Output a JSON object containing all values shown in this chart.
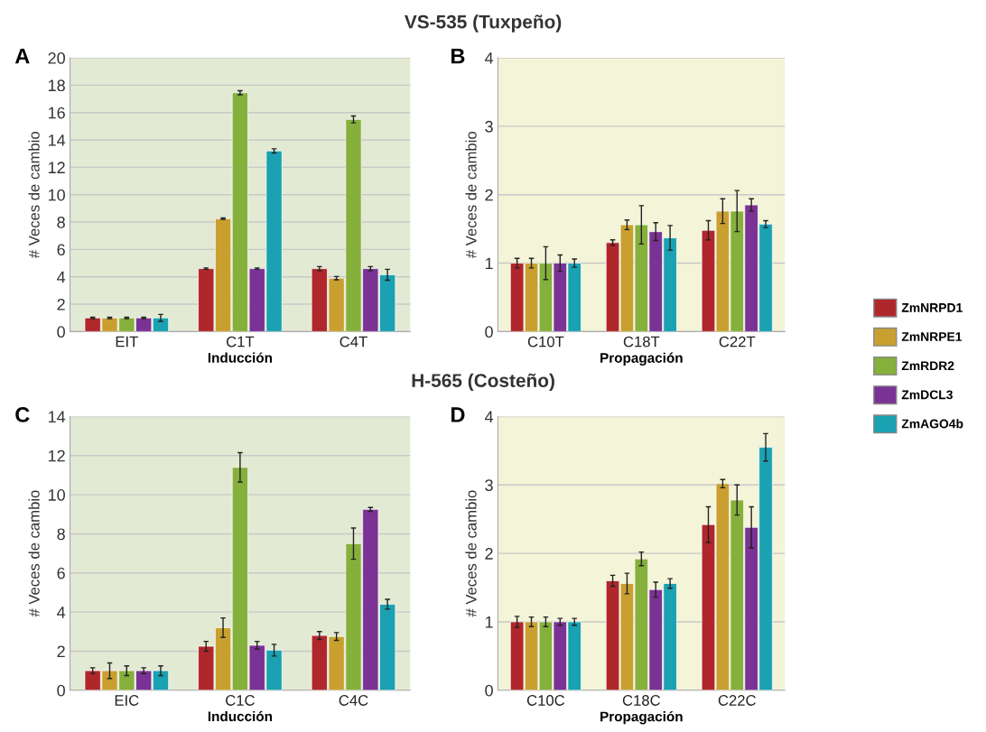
{
  "chart_data": [
    {
      "type": "bar",
      "title": "VS-535 (Tuxpeño)",
      "xlabel": "Inducción",
      "ylabel": "# Veces de cambio",
      "annotations": [
        "A"
      ],
      "categories": [
        "EIT",
        "C1T",
        "C4T"
      ],
      "ylim": [
        0,
        20
      ],
      "yticks": [
        0,
        2,
        4,
        6,
        8,
        10,
        12,
        14,
        16,
        18,
        20
      ],
      "grid": "y",
      "series": [
        {
          "color": "#b0272b",
          "values": [
            1,
            4.6,
            4.6
          ],
          "errors": [
            0.05,
            0.05,
            0.15
          ]
        },
        {
          "color": "#c9a030",
          "values": [
            1,
            8.25,
            3.9
          ],
          "errors": [
            0.05,
            0.05,
            0.12
          ]
        },
        {
          "color": "#86b03c",
          "values": [
            1,
            17.45,
            15.5
          ],
          "errors": [
            0.05,
            0.15,
            0.25
          ]
        },
        {
          "color": "#7a3294",
          "values": [
            1,
            4.6,
            4.6
          ],
          "errors": [
            0.05,
            0.05,
            0.15
          ]
        },
        {
          "color": "#1aa1b2",
          "values": [
            1,
            13.2,
            4.15
          ],
          "errors": [
            0.25,
            0.15,
            0.4
          ]
        }
      ]
    },
    {
      "type": "bar",
      "xlabel": "Propagación",
      "ylabel": "# Veces de cambio",
      "annotations": [
        "B"
      ],
      "categories": [
        "C10T",
        "C18T",
        "C22T"
      ],
      "ylim": [
        0,
        4
      ],
      "yticks": [
        0,
        1,
        2,
        3,
        4
      ],
      "grid": "y",
      "legend": "right",
      "series": [
        {
          "name": "ZmNRPD1",
          "color": "#b0272b",
          "values": [
            1,
            1.3,
            1.48
          ],
          "errors": [
            0.07,
            0.04,
            0.14
          ]
        },
        {
          "name": "ZmNRPE1",
          "color": "#c9a030",
          "values": [
            1,
            1.56,
            1.76
          ],
          "errors": [
            0.07,
            0.07,
            0.18
          ]
        },
        {
          "name": "ZmRDR2",
          "color": "#86b03c",
          "values": [
            1,
            1.56,
            1.76
          ],
          "errors": [
            0.24,
            0.28,
            0.3
          ]
        },
        {
          "name": "ZmDCL3",
          "color": "#7a3294",
          "values": [
            1,
            1.46,
            1.85
          ],
          "errors": [
            0.12,
            0.13,
            0.09
          ]
        },
        {
          "name": "ZmAGO4b",
          "color": "#1aa1b2",
          "values": [
            1,
            1.37,
            1.57
          ],
          "errors": [
            0.06,
            0.18,
            0.05
          ]
        }
      ]
    },
    {
      "type": "bar",
      "title": "H-565 (Costeño)",
      "xlabel": "Inducción",
      "ylabel": "# Veces de cambio",
      "annotations": [
        "C"
      ],
      "categories": [
        "EIC",
        "C1C",
        "C4C"
      ],
      "ylim": [
        0,
        14
      ],
      "yticks": [
        0,
        2,
        4,
        6,
        8,
        10,
        12,
        14
      ],
      "grid": "y",
      "series": [
        {
          "color": "#b0272b",
          "values": [
            1,
            2.25,
            2.8
          ],
          "errors": [
            0.15,
            0.25,
            0.2
          ]
        },
        {
          "color": "#c9a030",
          "values": [
            1,
            3.2,
            2.75
          ],
          "errors": [
            0.4,
            0.5,
            0.2
          ]
        },
        {
          "color": "#86b03c",
          "values": [
            1,
            11.4,
            7.5
          ],
          "errors": [
            0.25,
            0.75,
            0.8
          ]
        },
        {
          "color": "#7a3294",
          "values": [
            1,
            2.3,
            9.25
          ],
          "errors": [
            0.15,
            0.2,
            0.1
          ]
        },
        {
          "color": "#1aa1b2",
          "values": [
            1,
            2.05,
            4.4
          ],
          "errors": [
            0.25,
            0.3,
            0.25
          ]
        }
      ]
    },
    {
      "type": "bar",
      "xlabel": "Propagación",
      "ylabel": "# Veces de cambio",
      "annotations": [
        "D"
      ],
      "categories": [
        "C10C",
        "C18C",
        "C22C"
      ],
      "ylim": [
        0,
        4
      ],
      "yticks": [
        0,
        1,
        2,
        3,
        4
      ],
      "grid": "y",
      "series": [
        {
          "color": "#b0272b",
          "values": [
            1,
            1.6,
            2.42
          ],
          "errors": [
            0.08,
            0.08,
            0.26
          ]
        },
        {
          "color": "#c9a030",
          "values": [
            1,
            1.56,
            3.02
          ],
          "errors": [
            0.07,
            0.15,
            0.06
          ]
        },
        {
          "color": "#86b03c",
          "values": [
            1,
            1.92,
            2.78
          ],
          "errors": [
            0.07,
            0.1,
            0.22
          ]
        },
        {
          "color": "#7a3294",
          "values": [
            1,
            1.47,
            2.38
          ],
          "errors": [
            0.05,
            0.11,
            0.3
          ]
        },
        {
          "color": "#1aa1b2",
          "values": [
            1,
            1.56,
            3.55
          ],
          "errors": [
            0.05,
            0.07,
            0.2
          ]
        }
      ]
    }
  ]
}
